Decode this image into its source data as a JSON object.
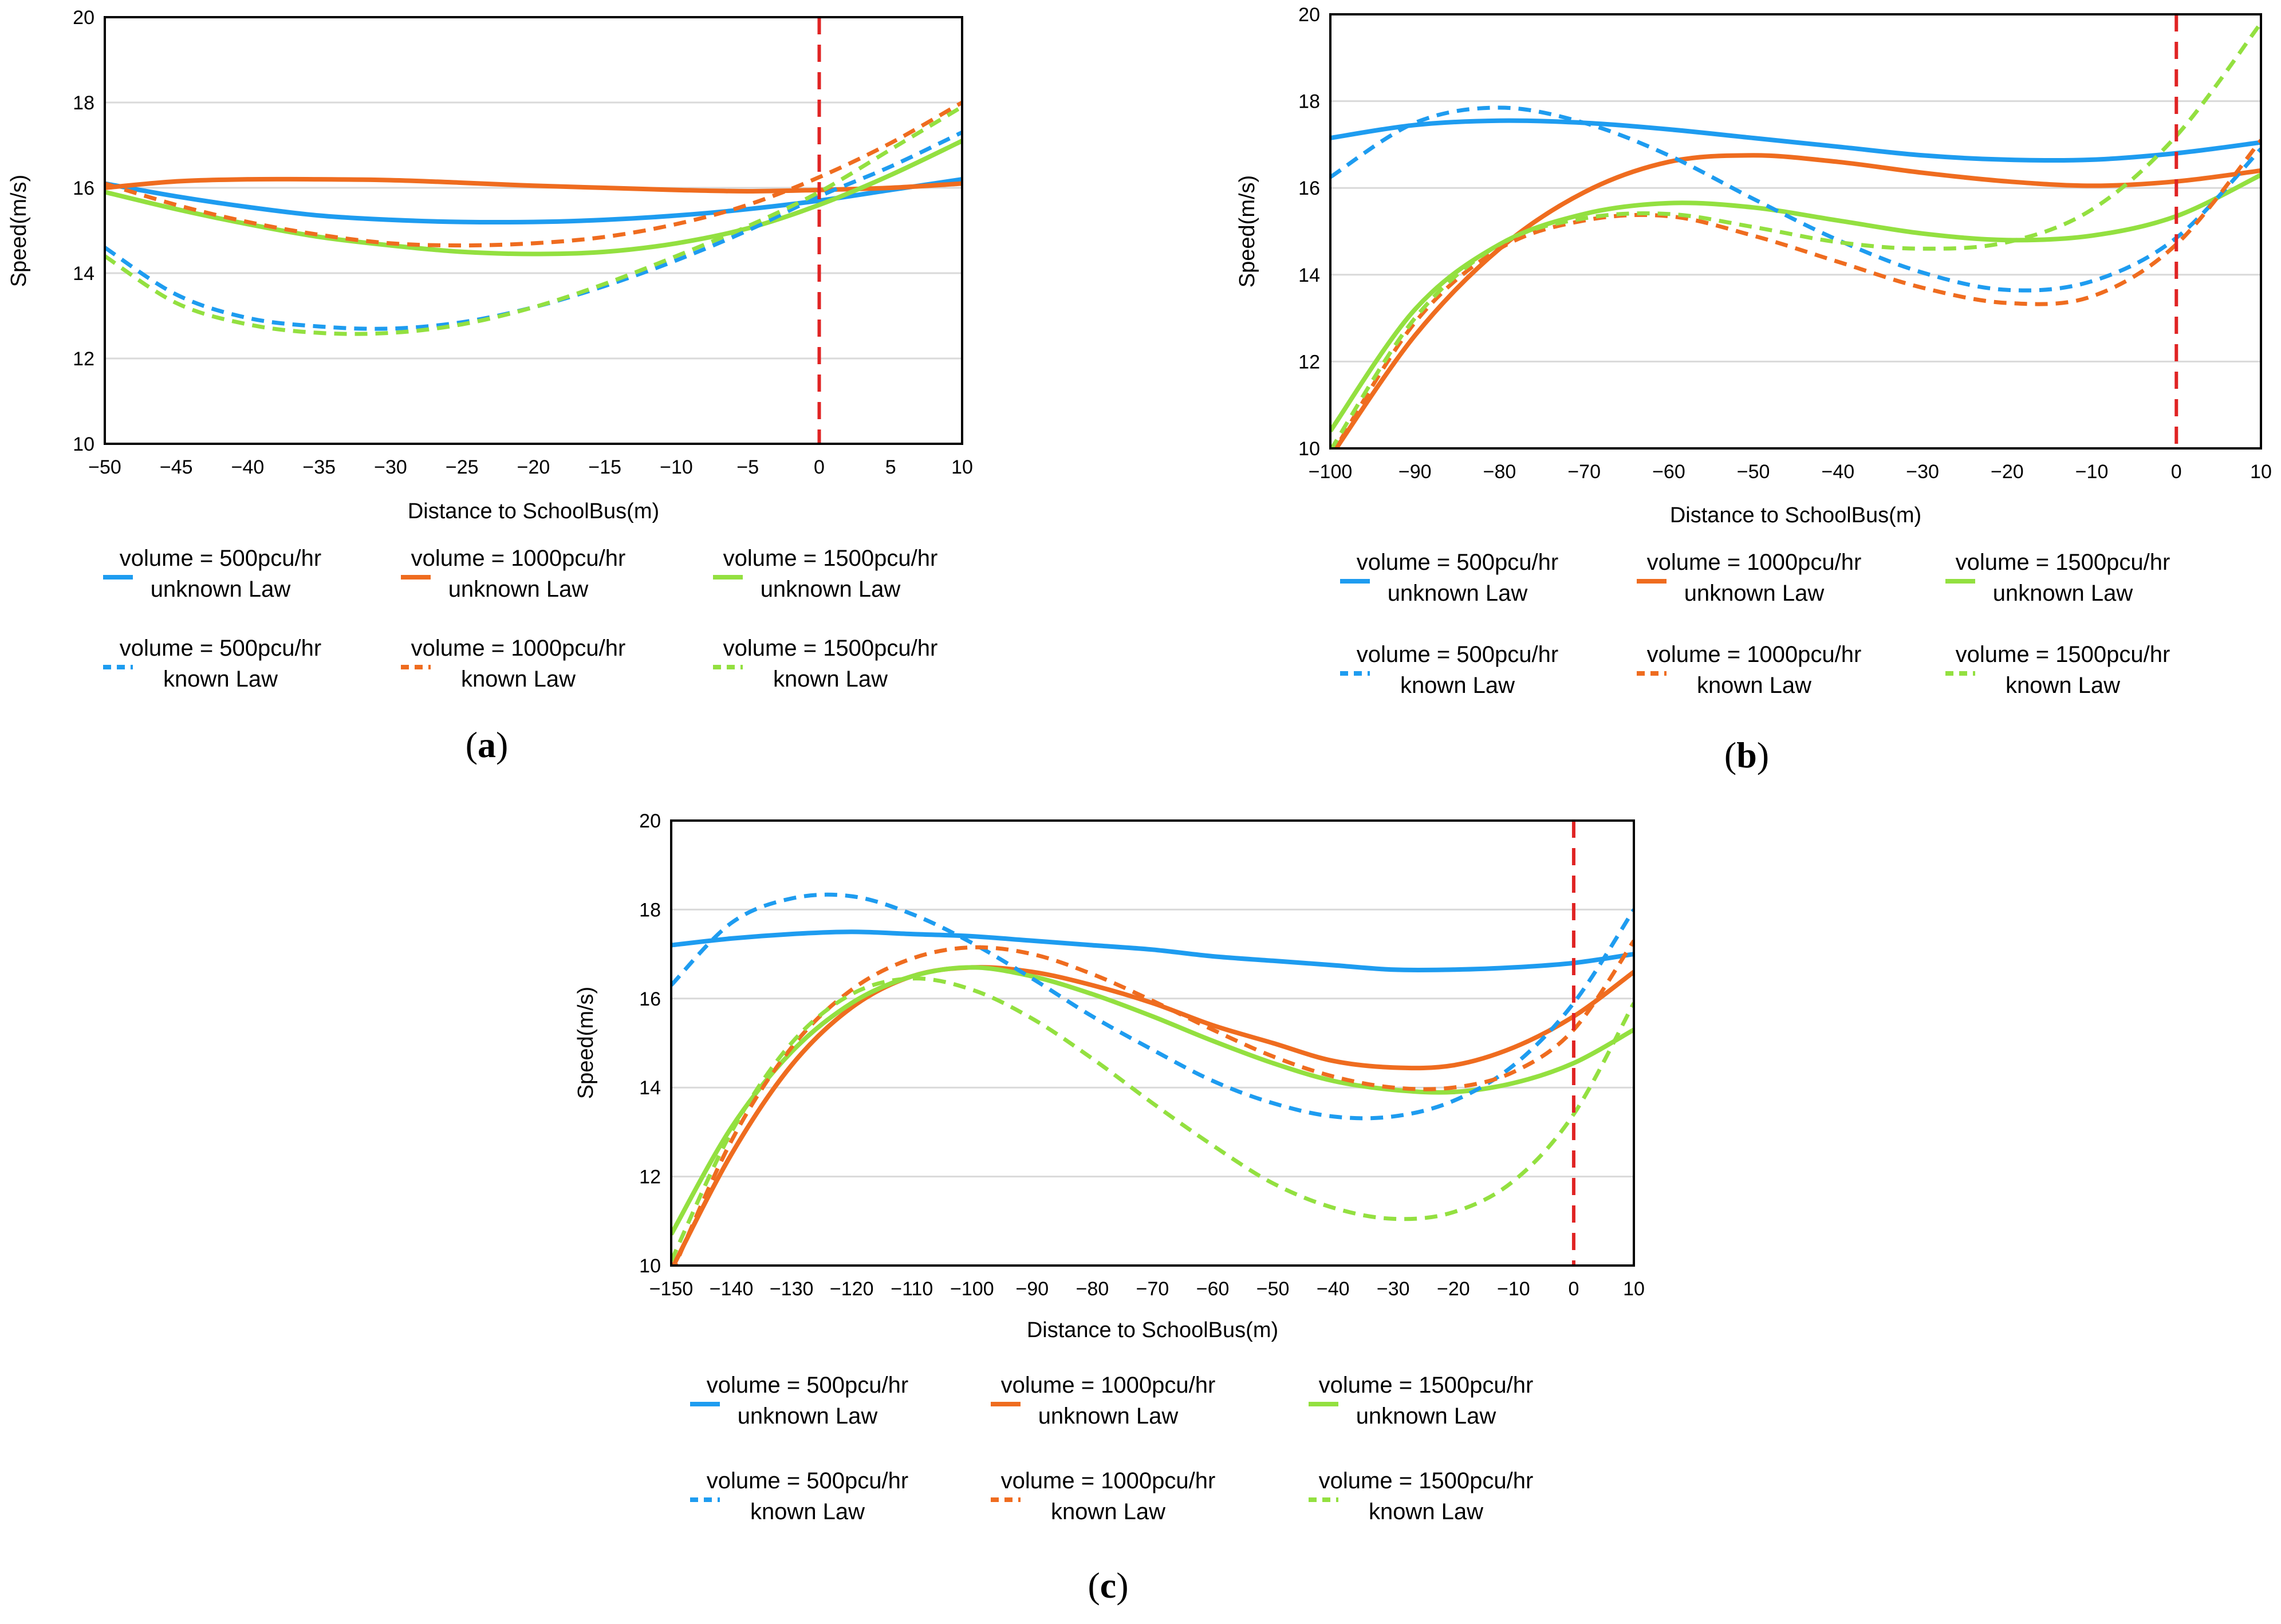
{
  "colors": {
    "v500": "#1e9cf0",
    "v1000": "#ef6c1f",
    "v1500": "#93e040",
    "marker": "#e02424"
  },
  "legend": [
    {
      "line1": "volume = 500pcu/hr",
      "line2": "unknown Law",
      "color": "#1e9cf0",
      "dash": false
    },
    {
      "line1": "volume = 1000pcu/hr",
      "line2": "unknown Law",
      "color": "#ef6c1f",
      "dash": false
    },
    {
      "line1": "volume = 1500pcu/hr",
      "line2": "unknown Law",
      "color": "#93e040",
      "dash": false
    },
    {
      "line1": "volume = 500pcu/hr",
      "line2": "known Law",
      "color": "#1e9cf0",
      "dash": true
    },
    {
      "line1": "volume = 1000pcu/hr",
      "line2": "known Law",
      "color": "#ef6c1f",
      "dash": true
    },
    {
      "line1": "volume = 1500pcu/hr",
      "line2": "known Law",
      "color": "#93e040",
      "dash": true
    }
  ],
  "chart_data": [
    {
      "panel": "(a)",
      "type": "line",
      "xlabel": "Distance to SchoolBus(m)",
      "ylabel": "Speed(m/s)",
      "xlim": [
        -50,
        10
      ],
      "ylim": [
        10,
        20
      ],
      "xticks": [
        -50,
        -45,
        -40,
        -35,
        -30,
        -25,
        -20,
        -15,
        -10,
        -5,
        0,
        5,
        10
      ],
      "yticks": [
        10,
        12,
        14,
        16,
        18,
        20
      ],
      "xtick_labels": [
        "−50",
        "−45",
        "−40",
        "−35",
        "−30",
        "−25",
        "−20",
        "−15",
        "−10",
        "−5",
        "0",
        "5",
        "10"
      ],
      "grid": "horizontal",
      "reference_line": {
        "x": 0,
        "style": "dashed",
        "color": "#e02424"
      },
      "x": [
        -50,
        -45,
        -40,
        -35,
        -30,
        -25,
        -20,
        -15,
        -10,
        -5,
        0,
        5,
        10
      ],
      "series": [
        {
          "legend_index": 0,
          "values": [
            16.1,
            15.8,
            15.55,
            15.35,
            15.25,
            15.2,
            15.2,
            15.25,
            15.35,
            15.5,
            15.7,
            15.95,
            16.2
          ]
        },
        {
          "legend_index": 1,
          "values": [
            16.0,
            16.15,
            16.2,
            16.2,
            16.18,
            16.12,
            16.05,
            16.0,
            15.95,
            15.92,
            15.95,
            16.0,
            16.1
          ]
        },
        {
          "legend_index": 2,
          "values": [
            15.9,
            15.5,
            15.15,
            14.85,
            14.65,
            14.5,
            14.45,
            14.5,
            14.7,
            15.05,
            15.6,
            16.3,
            17.1
          ]
        },
        {
          "legend_index": 3,
          "values": [
            14.6,
            13.5,
            12.95,
            12.75,
            12.7,
            12.85,
            13.2,
            13.7,
            14.3,
            15.0,
            15.8,
            16.5,
            17.3
          ]
        },
        {
          "legend_index": 4,
          "values": [
            16.1,
            15.6,
            15.2,
            14.9,
            14.7,
            14.65,
            14.7,
            14.85,
            15.15,
            15.6,
            16.25,
            17.05,
            18.0
          ]
        },
        {
          "legend_index": 5,
          "values": [
            14.4,
            13.3,
            12.8,
            12.6,
            12.6,
            12.8,
            13.2,
            13.75,
            14.4,
            15.1,
            15.9,
            16.9,
            17.9
          ]
        }
      ]
    },
    {
      "panel": "(b)",
      "type": "line",
      "xlabel": "Distance to SchoolBus(m)",
      "ylabel": "Speed(m/s)",
      "xlim": [
        -100,
        10
      ],
      "ylim": [
        10,
        20
      ],
      "xticks": [
        -100,
        -90,
        -80,
        -70,
        -60,
        -50,
        -40,
        -30,
        -20,
        -10,
        0,
        10
      ],
      "yticks": [
        10,
        12,
        14,
        16,
        18,
        20
      ],
      "xtick_labels": [
        "−100",
        "−90",
        "−80",
        "−70",
        "−60",
        "−50",
        "−40",
        "−30",
        "−20",
        "−10",
        "0",
        "10"
      ],
      "grid": "horizontal",
      "reference_line": {
        "x": 0,
        "style": "dashed",
        "color": "#e02424"
      },
      "x": [
        -100,
        -90,
        -80,
        -70,
        -60,
        -50,
        -40,
        -30,
        -20,
        -10,
        0,
        10
      ],
      "series": [
        {
          "legend_index": 0,
          "values": [
            17.15,
            17.45,
            17.55,
            17.5,
            17.35,
            17.15,
            16.95,
            16.75,
            16.65,
            16.65,
            16.8,
            17.05
          ]
        },
        {
          "legend_index": 1,
          "values": [
            9.8,
            12.6,
            14.6,
            15.9,
            16.6,
            16.75,
            16.6,
            16.35,
            16.15,
            16.05,
            16.15,
            16.4
          ]
        },
        {
          "legend_index": 2,
          "values": [
            10.4,
            13.2,
            14.7,
            15.4,
            15.65,
            15.55,
            15.25,
            14.95,
            14.8,
            14.9,
            15.35,
            16.3
          ]
        },
        {
          "legend_index": 3,
          "values": [
            16.25,
            17.5,
            17.85,
            17.5,
            16.75,
            15.75,
            14.8,
            14.05,
            13.65,
            13.85,
            14.85,
            16.9
          ]
        },
        {
          "legend_index": 4,
          "values": [
            9.8,
            12.9,
            14.6,
            15.25,
            15.35,
            14.9,
            14.3,
            13.7,
            13.35,
            13.5,
            14.7,
            17.1
          ]
        },
        {
          "legend_index": 5,
          "values": [
            9.95,
            13.0,
            14.7,
            15.3,
            15.4,
            15.1,
            14.75,
            14.6,
            14.75,
            15.5,
            17.2,
            19.8
          ]
        }
      ]
    },
    {
      "panel": "(c)",
      "type": "line",
      "xlabel": "Distance to SchoolBus(m)",
      "ylabel": "Speed(m/s)",
      "xlim": [
        -150,
        10
      ],
      "ylim": [
        10,
        20
      ],
      "xticks": [
        -150,
        -140,
        -130,
        -120,
        -110,
        -100,
        -90,
        -80,
        -70,
        -60,
        -50,
        -40,
        -30,
        -20,
        -10,
        0,
        10
      ],
      "yticks": [
        10,
        12,
        14,
        16,
        18,
        20
      ],
      "xtick_labels": [
        "−150",
        "−140",
        "−130",
        "−120",
        "−110",
        "−100",
        "−90",
        "−80",
        "−70",
        "−60",
        "−50",
        "−40",
        "−30",
        "−20",
        "−10",
        "0",
        "10"
      ],
      "grid": "horizontal",
      "reference_line": {
        "x": 0,
        "style": "dashed",
        "color": "#e02424"
      },
      "x": [
        -150,
        -140,
        -130,
        -120,
        -110,
        -100,
        -90,
        -80,
        -70,
        -60,
        -50,
        -40,
        -30,
        -20,
        -10,
        0,
        10
      ],
      "series": [
        {
          "legend_index": 0,
          "values": [
            17.2,
            17.35,
            17.45,
            17.5,
            17.45,
            17.4,
            17.3,
            17.2,
            17.1,
            16.95,
            16.85,
            16.75,
            16.65,
            16.65,
            16.7,
            16.8,
            17.0
          ]
        },
        {
          "legend_index": 1,
          "values": [
            9.9,
            12.5,
            14.5,
            15.8,
            16.5,
            16.7,
            16.6,
            16.3,
            15.9,
            15.4,
            15.0,
            14.6,
            14.45,
            14.5,
            14.9,
            15.6,
            16.6
          ]
        },
        {
          "legend_index": 2,
          "values": [
            10.7,
            13.1,
            14.8,
            15.9,
            16.5,
            16.7,
            16.5,
            16.1,
            15.6,
            15.05,
            14.55,
            14.15,
            13.95,
            13.9,
            14.1,
            14.55,
            15.3
          ]
        },
        {
          "legend_index": 3,
          "values": [
            16.3,
            17.7,
            18.25,
            18.3,
            17.9,
            17.25,
            16.45,
            15.6,
            14.85,
            14.15,
            13.65,
            13.35,
            13.35,
            13.7,
            14.5,
            15.9,
            18.0
          ]
        },
        {
          "legend_index": 4,
          "values": [
            9.8,
            12.8,
            14.9,
            16.2,
            16.9,
            17.15,
            17.0,
            16.55,
            15.95,
            15.3,
            14.7,
            14.25,
            14.0,
            14.0,
            14.35,
            15.3,
            17.3
          ]
        },
        {
          "legend_index": 5,
          "values": [
            10.1,
            13.0,
            15.0,
            16.1,
            16.45,
            16.2,
            15.55,
            14.65,
            13.65,
            12.7,
            11.85,
            11.3,
            11.05,
            11.2,
            11.9,
            13.4,
            15.9
          ]
        }
      ]
    }
  ]
}
